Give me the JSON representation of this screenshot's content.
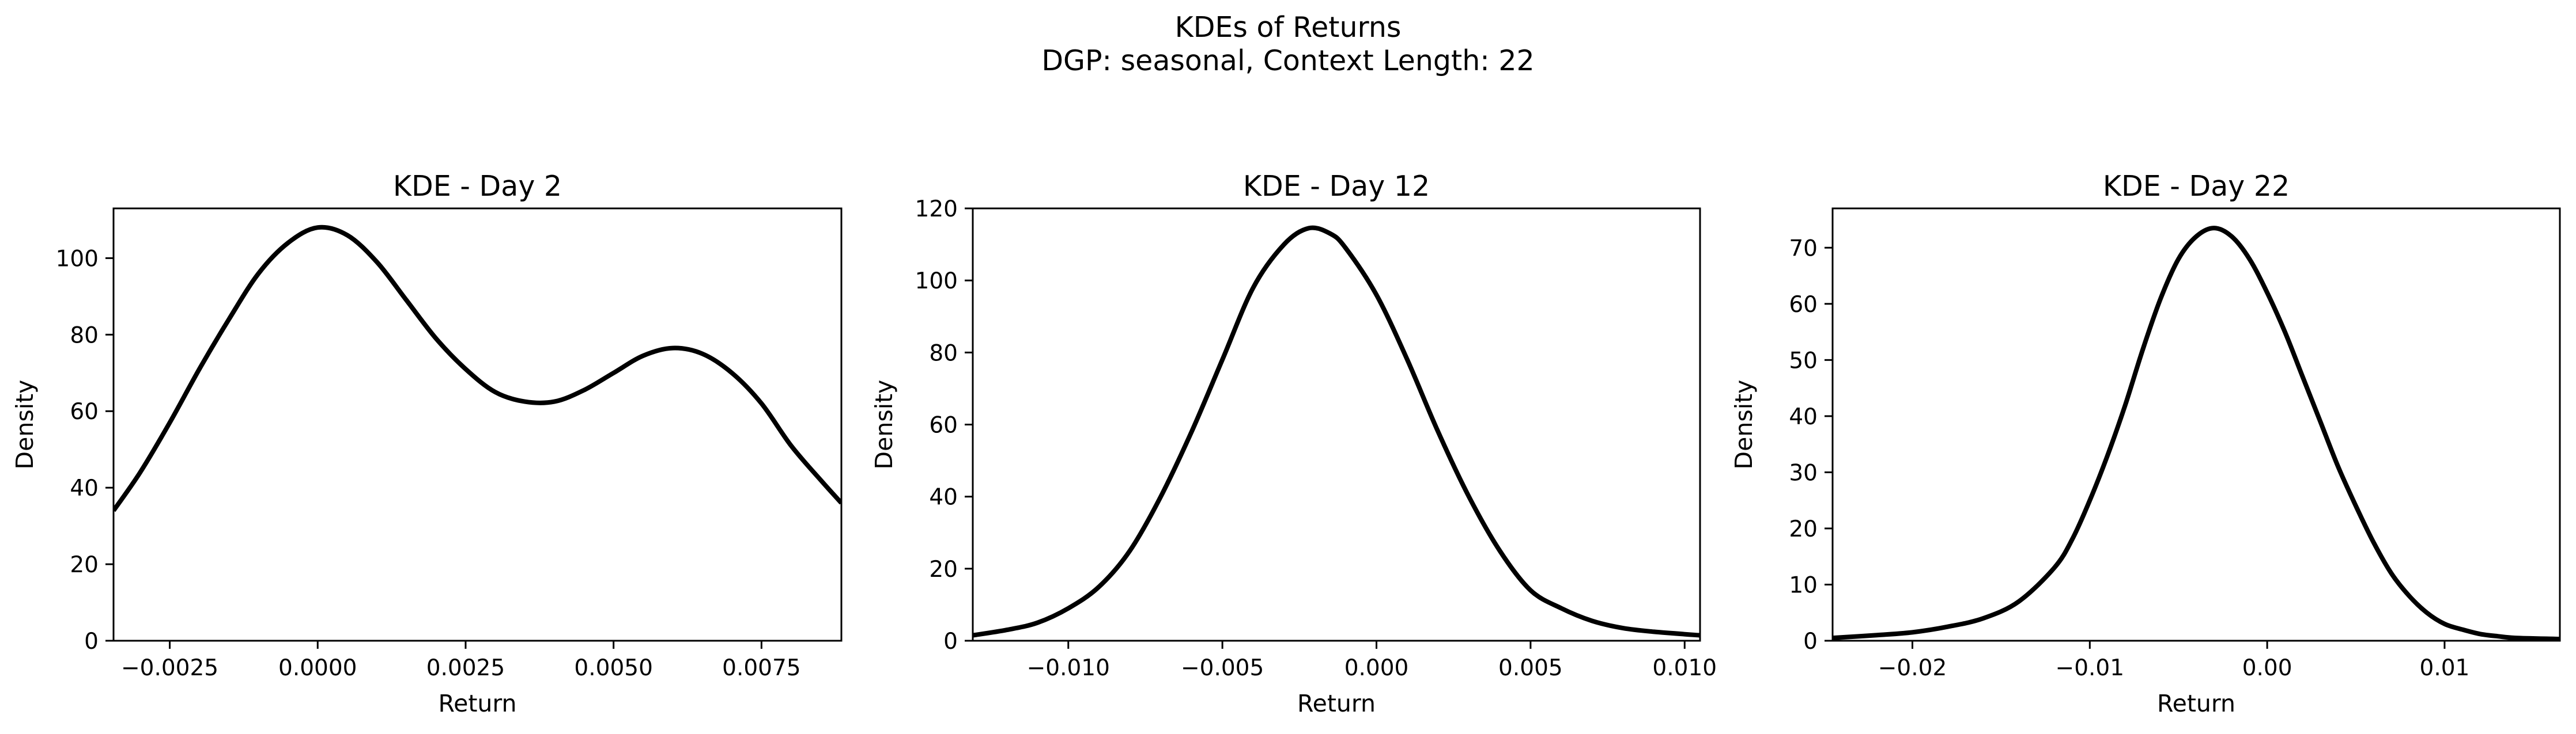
{
  "figure": {
    "title_line1": "KDEs of Returns",
    "title_line2": "DGP: seasonal, Context Length: 22"
  },
  "colors": {
    "line": "#000000",
    "axes": "#000000",
    "background": "#ffffff"
  },
  "chart_data": [
    {
      "type": "line",
      "title": "KDE - Day 2",
      "xlabel": "Return",
      "ylabel": "Density",
      "xlim": [
        -0.00345,
        0.00885
      ],
      "ylim": [
        0,
        113
      ],
      "grid": false,
      "xticks": [
        -0.0025,
        0.0,
        0.0025,
        0.005,
        0.0075
      ],
      "xtick_labels": [
        "−0.0025",
        "0.0000",
        "0.0025",
        "0.0050",
        "0.0075"
      ],
      "yticks": [
        0,
        20,
        40,
        60,
        80,
        100
      ],
      "ytick_labels": [
        "0",
        "20",
        "40",
        "60",
        "80",
        "100"
      ],
      "series": [
        {
          "x": [
            -0.00345,
            -0.003,
            -0.0025,
            -0.002,
            -0.0015,
            -0.001,
            -0.0005,
            0.0,
            0.0005,
            0.001,
            0.0015,
            0.002,
            0.0025,
            0.003,
            0.0035,
            0.004,
            0.0045,
            0.005,
            0.0055,
            0.006,
            0.0065,
            0.007,
            0.0075,
            0.008,
            0.0085,
            0.00885
          ],
          "y": [
            34,
            44,
            57,
            71,
            84,
            96,
            104,
            108,
            106,
            99,
            89,
            79,
            71,
            65,
            62.5,
            62.5,
            65.5,
            70,
            74.5,
            76.5,
            75,
            70,
            62,
            51,
            42,
            36
          ]
        }
      ]
    },
    {
      "type": "line",
      "title": "KDE - Day 12",
      "xlabel": "Return",
      "ylabel": "Density",
      "xlim": [
        -0.0131,
        0.0105
      ],
      "ylim": [
        0,
        120
      ],
      "grid": false,
      "xticks": [
        -0.01,
        -0.005,
        0.0,
        0.005,
        0.01
      ],
      "xtick_labels": [
        "−0.010",
        "−0.005",
        "0.000",
        "0.005",
        "0.010"
      ],
      "yticks": [
        0,
        20,
        40,
        60,
        80,
        100,
        120
      ],
      "ytick_labels": [
        "0",
        "20",
        "40",
        "60",
        "80",
        "100",
        "120"
      ],
      "series": [
        {
          "x": [
            -0.0131,
            -0.012,
            -0.011,
            -0.01,
            -0.009,
            -0.008,
            -0.007,
            -0.006,
            -0.005,
            -0.004,
            -0.003,
            -0.0022,
            -0.0015,
            -0.001,
            0.0,
            0.001,
            0.002,
            0.003,
            0.004,
            0.005,
            0.006,
            0.007,
            0.008,
            0.009,
            0.0105
          ],
          "y": [
            1.5,
            3,
            5,
            9,
            15,
            25,
            40,
            58,
            78,
            98,
            110,
            114.5,
            113,
            109,
            96,
            78,
            58,
            40,
            25,
            14,
            9,
            5.5,
            3.5,
            2.5,
            1.5
          ]
        }
      ]
    },
    {
      "type": "line",
      "title": "KDE - Day 22",
      "xlabel": "Return",
      "ylabel": "Density",
      "xlim": [
        -0.0245,
        0.0165
      ],
      "ylim": [
        0,
        77
      ],
      "grid": false,
      "xticks": [
        -0.02,
        -0.01,
        0.0,
        0.01
      ],
      "xtick_labels": [
        "−0.02",
        "−0.01",
        "0.00",
        "0.01"
      ],
      "yticks": [
        0,
        10,
        20,
        30,
        40,
        50,
        60,
        70
      ],
      "ytick_labels": [
        "0",
        "10",
        "20",
        "30",
        "40",
        "50",
        "60",
        "70"
      ],
      "series": [
        {
          "x": [
            -0.0245,
            -0.022,
            -0.02,
            -0.018,
            -0.016,
            -0.014,
            -0.012,
            -0.011,
            -0.01,
            -0.009,
            -0.008,
            -0.007,
            -0.006,
            -0.005,
            -0.004,
            -0.003,
            -0.002,
            -0.001,
            0.0,
            0.001,
            0.002,
            0.003,
            0.004,
            0.005,
            0.006,
            0.007,
            0.008,
            0.009,
            0.01,
            0.011,
            0.012,
            0.013,
            0.014,
            0.0165
          ],
          "y": [
            0.5,
            1,
            1.5,
            2.5,
            4,
            7,
            13,
            18,
            25,
            33,
            42,
            52,
            61,
            68,
            72,
            73.5,
            72,
            68,
            62,
            55,
            47,
            39,
            31,
            24,
            17.5,
            12,
            8,
            5,
            3,
            2,
            1.2,
            0.8,
            0.5,
            0.3
          ]
        }
      ]
    }
  ]
}
